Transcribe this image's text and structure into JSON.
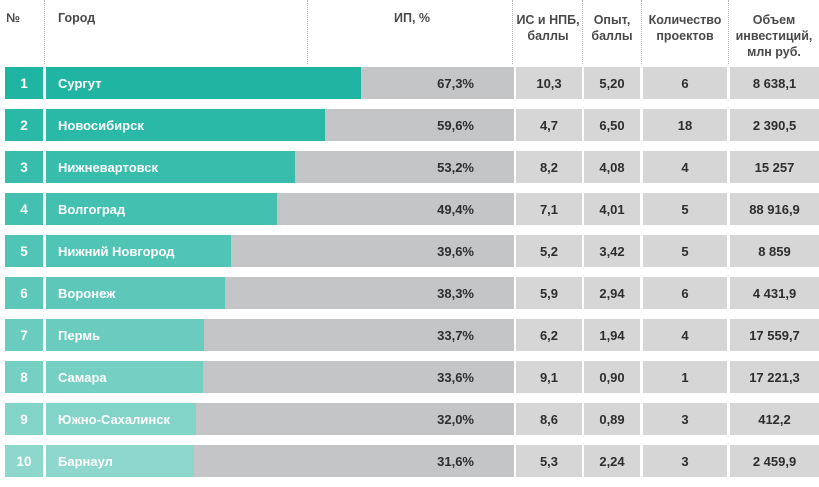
{
  "headers": {
    "num": "№",
    "city": "Город",
    "ip": "ИП, %",
    "is_npb_line1": "ИС и НПБ,",
    "is_npb_line2": "баллы",
    "exp_line1": "Опыт,",
    "exp_line2": "баллы",
    "projects_line1": "Количество",
    "projects_line2": "проектов",
    "invest_line1": "Объем",
    "invest_line2": "инвестиций,",
    "invest_line3": "млн руб."
  },
  "colors": {
    "bar_dark": "#1fb5a2",
    "bar_light": "#8ed7cd",
    "bar_track": "#c4c5c7",
    "cell_gray": "#d6d6d7"
  },
  "rows": [
    {
      "num": "1",
      "city": "Сургут",
      "ip": "67,3%",
      "is_npb": "10,3",
      "exp": "5,20",
      "projects": "6",
      "invest": "8 638,1"
    },
    {
      "num": "2",
      "city": "Новосибирск",
      "ip": "59,6%",
      "is_npb": "4,7",
      "exp": "6,50",
      "projects": "18",
      "invest": "2 390,5"
    },
    {
      "num": "3",
      "city": "Нижневартовск",
      "ip": "53,2%",
      "is_npb": "8,2",
      "exp": "4,08",
      "projects": "4",
      "invest": "15 257"
    },
    {
      "num": "4",
      "city": "Волгоград",
      "ip": "49,4%",
      "is_npb": "7,1",
      "exp": "4,01",
      "projects": "5",
      "invest": "88 916,9"
    },
    {
      "num": "5",
      "city": "Нижний Новгород",
      "ip": "39,6%",
      "is_npb": "5,2",
      "exp": "3,42",
      "projects": "5",
      "invest": "8 859"
    },
    {
      "num": "6",
      "city": "Воронеж",
      "ip": "38,3%",
      "is_npb": "5,9",
      "exp": "2,94",
      "projects": "6",
      "invest": "4 431,9"
    },
    {
      "num": "7",
      "city": "Пермь",
      "ip": "33,7%",
      "is_npb": "6,2",
      "exp": "1,94",
      "projects": "4",
      "invest": "17 559,7"
    },
    {
      "num": "8",
      "city": "Самара",
      "ip": "33,6%",
      "is_npb": "9,1",
      "exp": "0,90",
      "projects": "1",
      "invest": "17 221,3"
    },
    {
      "num": "9",
      "city": "Южно-Сахалинск",
      "ip": "32,0%",
      "is_npb": "8,6",
      "exp": "0,89",
      "projects": "3",
      "invest": "412,2"
    },
    {
      "num": "10",
      "city": "Барнаул",
      "ip": "31,6%",
      "is_npb": "5,3",
      "exp": "2,24",
      "projects": "3",
      "invest": "2 459,9"
    }
  ],
  "chart_data": {
    "type": "bar",
    "title": "",
    "xlabel": "",
    "ylabel": "ИП, %",
    "categories": [
      "Сургут",
      "Новосибирск",
      "Нижневартовск",
      "Волгоград",
      "Нижний Новгород",
      "Воронеж",
      "Пермь",
      "Самара",
      "Южно-Сахалинск",
      "Барнаул"
    ],
    "values": [
      67.3,
      59.6,
      53.2,
      49.4,
      39.6,
      38.3,
      33.7,
      33.6,
      32.0,
      31.6
    ],
    "ylim": [
      0,
      100
    ]
  }
}
